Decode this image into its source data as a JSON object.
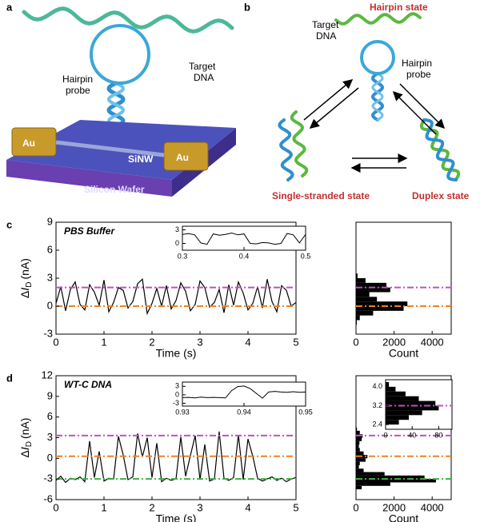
{
  "illustration_a": {
    "label": "a",
    "hairpin_probe": [
      "Hairpin",
      "probe"
    ],
    "target_dna": [
      "Target",
      "DNA"
    ],
    "electrodes": [
      "Au",
      "Au"
    ],
    "nanowire": "SiNW",
    "substrate": "Silicon Wafer"
  },
  "diagram_b": {
    "label": "b",
    "hairpin_state": "Hairpin state",
    "target_dna": [
      "Target",
      "DNA"
    ],
    "hairpin_probe": [
      "Hairpin",
      "probe"
    ],
    "single_stranded_state": "Single-stranded state",
    "duplex_state": "Duplex state"
  },
  "chart_data": [
    {
      "type": "line",
      "panel_label": "c",
      "annotation": "PBS Buffer",
      "color": "#000000",
      "x": [
        0,
        0.1,
        0.2,
        0.3,
        0.4,
        0.5,
        0.6,
        0.7,
        0.8,
        0.9,
        1,
        1.1,
        1.2,
        1.3,
        1.4,
        1.5,
        1.6,
        1.7,
        1.8,
        1.9,
        2,
        2.1,
        2.2,
        2.3,
        2.4,
        2.5,
        2.6,
        2.7,
        2.8,
        2.9,
        3,
        3.1,
        3.2,
        3.3,
        3.4,
        3.5,
        3.6,
        3.7,
        3.8,
        3.9,
        4,
        4.1,
        4.2,
        4.3,
        4.4,
        4.5,
        4.6,
        4.7,
        4.8,
        4.9,
        5
      ],
      "values": [
        0.3,
        2.1,
        -0.5,
        1.8,
        2.6,
        0.2,
        -0.4,
        2.3,
        1.5,
        0.1,
        2.8,
        -0.6,
        0.4,
        2.0,
        1.7,
        -0.2,
        0.5,
        2.4,
        2.9,
        -0.8,
        0.3,
        1.9,
        0.0,
        2.2,
        -0.3,
        0.6,
        2.5,
        1.6,
        -0.5,
        0.2,
        2.7,
        2.0,
        -0.1,
        0.4,
        1.8,
        -0.7,
        2.3,
        0.1,
        2.6,
        1.4,
        -0.4,
        0.3,
        2.1,
        -0.2,
        2.9,
        0.5,
        -0.6,
        2.2,
        1.7,
        0.0,
        0.4
      ],
      "xlim": [
        0,
        5
      ],
      "xticks": [
        0,
        1,
        2,
        3,
        4,
        5
      ],
      "ylim": [
        -3,
        9
      ],
      "yticks": [
        -3,
        0,
        3,
        6,
        9
      ],
      "xlabel": "Time (s)",
      "ylabel": [
        "Δ",
        "I",
        "D",
        "(nA)"
      ],
      "hlines": [
        {
          "value": 2,
          "color": "#c050c0"
        },
        {
          "value": 0,
          "color": "#f08020"
        }
      ]
    },
    {
      "type": "line",
      "color": "#000000",
      "x": [
        0.3,
        0.31,
        0.32,
        0.33,
        0.34,
        0.35,
        0.36,
        0.37,
        0.38,
        0.39,
        0.4,
        0.41,
        0.42,
        0.43,
        0.44,
        0.45,
        0.46,
        0.47,
        0.48,
        0.49,
        0.5
      ],
      "values": [
        2.0,
        2.2,
        1.9,
        0.1,
        -0.2,
        2.1,
        1.8,
        2.0,
        2.3,
        1.9,
        2.1,
        0.0,
        -0.1,
        0.2,
        0.1,
        -0.2,
        0.0,
        2.2,
        1.9,
        0.1,
        2.0
      ],
      "xlim": [
        0.3,
        0.5
      ],
      "xticks": [
        0.3,
        0.4,
        0.5
      ],
      "ylim": [
        -1.5,
        3.8
      ],
      "yticks": [
        0,
        3
      ]
    },
    {
      "type": "histogram",
      "color": "#000000",
      "bins": [
        -3,
        -2.5,
        -2,
        -1.5,
        -1,
        -0.5,
        0,
        0.5,
        1,
        1.5,
        2,
        2.5,
        3,
        3.5,
        4
      ],
      "values": [
        0,
        10,
        40,
        200,
        900,
        2500,
        2700,
        1100,
        700,
        1800,
        1600,
        500,
        80,
        10
      ],
      "xlim": [
        0,
        5000
      ],
      "xticks": [
        0,
        2000,
        4000
      ],
      "ylim": [
        -3,
        9
      ],
      "xlabel": "Count",
      "hlines": [
        {
          "value": 2,
          "color": "#c050c0"
        },
        {
          "value": 0,
          "color": "#f08020"
        }
      ]
    },
    {
      "type": "line",
      "panel_label": "d",
      "annotation": "WT-C DNA",
      "color": "#000000",
      "x": [
        0,
        0.1,
        0.2,
        0.3,
        0.4,
        0.5,
        0.6,
        0.7,
        0.8,
        0.9,
        1,
        1.1,
        1.2,
        1.3,
        1.4,
        1.5,
        1.6,
        1.7,
        1.8,
        1.9,
        2,
        2.1,
        2.2,
        2.3,
        2.4,
        2.5,
        2.6,
        2.7,
        2.8,
        2.9,
        3,
        3.1,
        3.2,
        3.3,
        3.4,
        3.5,
        3.6,
        3.7,
        3.8,
        3.9,
        4,
        4.1,
        4.2,
        4.3,
        4.4,
        4.5,
        4.6,
        4.7,
        4.8,
        4.9,
        5
      ],
      "values": [
        -3.2,
        -2.6,
        -3.5,
        -2.9,
        -3.1,
        -2.7,
        -3.4,
        2.5,
        -2.8,
        1.0,
        -3.3,
        -2.9,
        -3.0,
        3.2,
        0.5,
        -3.1,
        -2.7,
        3.6,
        0.2,
        3.0,
        -2.8,
        2.2,
        -3.4,
        -2.9,
        -3.2,
        -3.0,
        3.1,
        -2.6,
        0.4,
        3.3,
        -3.1,
        2.0,
        -3.3,
        -3.0,
        3.9,
        -2.9,
        -3.2,
        -2.8,
        3.4,
        -3.1,
        2.8,
        0.3,
        -2.9,
        -3.3,
        -3.0,
        -2.7,
        -3.2,
        -2.9,
        -3.4,
        -3.0,
        -2.8
      ],
      "xlim": [
        0,
        5
      ],
      "xticks": [
        0,
        1,
        2,
        3,
        4,
        5
      ],
      "ylim": [
        -6,
        12
      ],
      "yticks": [
        -6,
        -3,
        0,
        3,
        6,
        9,
        12
      ],
      "xlabel": "Time (s)",
      "ylabel": [
        "Δ",
        "I",
        "D",
        "(nA)"
      ],
      "hlines": [
        {
          "value": 3.3,
          "color": "#c050c0"
        },
        {
          "value": 0.3,
          "color": "#f08020"
        },
        {
          "value": -3,
          "color": "#40b040"
        }
      ]
    },
    {
      "type": "line",
      "color": "#000000",
      "x": [
        0.93,
        0.931,
        0.932,
        0.933,
        0.934,
        0.935,
        0.936,
        0.937,
        0.938,
        0.939,
        0.94,
        0.941,
        0.942,
        0.943,
        0.944,
        0.945,
        0.946,
        0.947,
        0.948,
        0.949,
        0.95
      ],
      "values": [
        -1.0,
        -0.9,
        -1.1,
        -0.8,
        -1.0,
        -0.9,
        -1.0,
        -1.1,
        1.5,
        2.9,
        3.1,
        2.2,
        0.5,
        -1.2,
        1.0,
        1.2,
        1.0,
        0.9,
        1.1,
        0.9,
        1.0
      ],
      "xlim": [
        0.93,
        0.95
      ],
      "xticks": [
        0.93,
        0.94,
        0.95
      ],
      "ylim": [
        -4,
        4.5
      ],
      "yticks": [
        -3,
        0,
        3
      ]
    },
    {
      "type": "histogram",
      "color": "#000000",
      "bins": [
        -5,
        -4.5,
        -4,
        -3.5,
        -3,
        -2.5,
        -2,
        -1.5,
        -1,
        -0.5,
        0,
        0.5,
        1,
        1.5,
        2,
        2.5,
        3,
        3.5,
        4,
        4.5,
        5
      ],
      "values": [
        20,
        300,
        1800,
        4200,
        3600,
        1500,
        400,
        150,
        200,
        500,
        600,
        400,
        200,
        150,
        180,
        300,
        350,
        200,
        50,
        10
      ],
      "xlim": [
        0,
        5000
      ],
      "xticks": [
        0,
        2000,
        4000
      ],
      "ylim": [
        -6,
        12
      ],
      "xlabel": "Count",
      "hlines": [
        {
          "value": 3.3,
          "color": "#c050c0"
        },
        {
          "value": 0.3,
          "color": "#f08020"
        },
        {
          "value": -3,
          "color": "#40b040"
        }
      ]
    },
    {
      "type": "histogram",
      "color": "#000000",
      "bins": [
        2.4,
        2.6,
        2.8,
        3.0,
        3.2,
        3.4,
        3.6,
        3.8,
        4.0,
        4.2
      ],
      "values": [
        20,
        35,
        55,
        80,
        75,
        50,
        30,
        15,
        5
      ],
      "xlim": [
        0,
        100
      ],
      "xticks": [
        0,
        40,
        80
      ],
      "ylim": [
        2.2,
        4.3
      ],
      "yticks": [
        2.4,
        3.2,
        {
          "value": 4,
          "label": "4.0"
        }
      ],
      "hlines": [
        {
          "value": 3.2,
          "color": "#c050c0"
        }
      ]
    }
  ]
}
